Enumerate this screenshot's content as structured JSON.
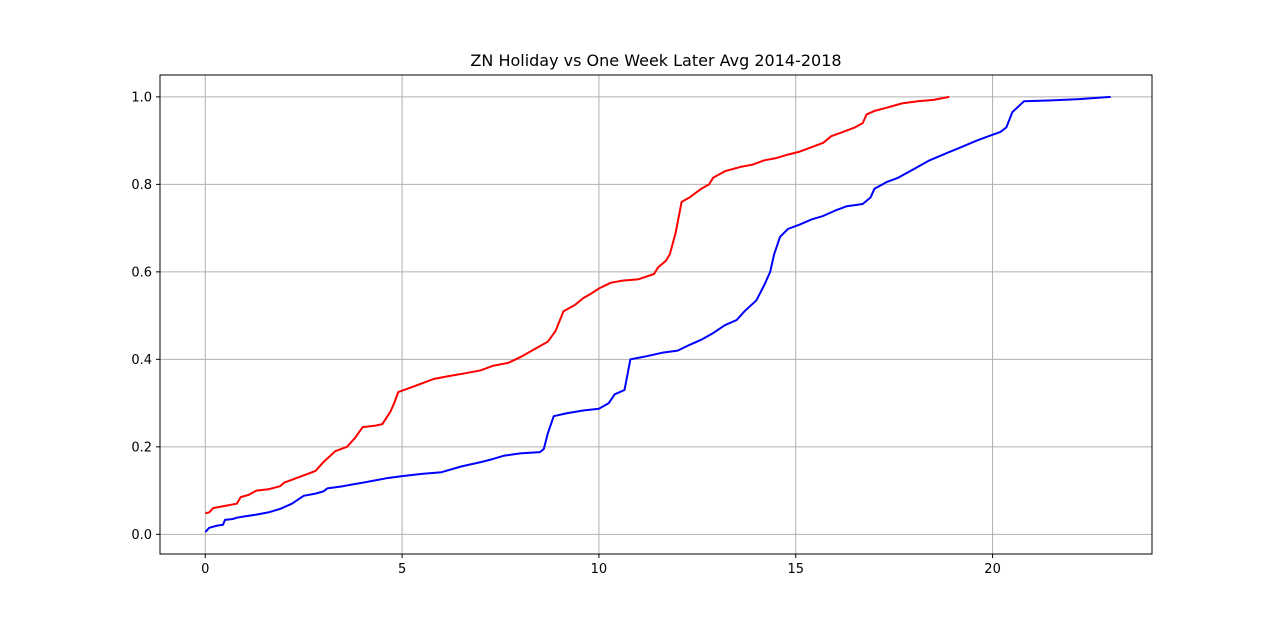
{
  "chart_data": {
    "type": "line",
    "title": "ZN Holiday vs One Week Later Avg 2014-2018",
    "xlabel": "",
    "ylabel": "",
    "xlim": [
      -1.15,
      24.05
    ],
    "ylim": [
      -0.045,
      1.05
    ],
    "xticks": [
      0,
      5,
      10,
      15,
      20
    ],
    "yticks": [
      0.0,
      0.2,
      0.4,
      0.6,
      0.8,
      1.0
    ],
    "xtick_labels": [
      "0",
      "5",
      "10",
      "15",
      "20"
    ],
    "ytick_labels": [
      "0.0",
      "0.2",
      "0.4",
      "0.6",
      "0.8",
      "1.0"
    ],
    "grid": true,
    "legend": "none",
    "series": [
      {
        "color": "#ff0000",
        "points": [
          [
            0.0,
            0.048
          ],
          [
            0.1,
            0.05
          ],
          [
            0.2,
            0.06
          ],
          [
            0.5,
            0.065
          ],
          [
            0.8,
            0.07
          ],
          [
            0.9,
            0.085
          ],
          [
            1.1,
            0.09
          ],
          [
            1.3,
            0.1
          ],
          [
            1.6,
            0.103
          ],
          [
            1.9,
            0.11
          ],
          [
            2.0,
            0.118
          ],
          [
            2.3,
            0.128
          ],
          [
            2.6,
            0.138
          ],
          [
            2.8,
            0.145
          ],
          [
            3.0,
            0.165
          ],
          [
            3.3,
            0.19
          ],
          [
            3.6,
            0.2
          ],
          [
            3.8,
            0.22
          ],
          [
            4.0,
            0.245
          ],
          [
            4.3,
            0.248
          ],
          [
            4.5,
            0.252
          ],
          [
            4.7,
            0.28
          ],
          [
            4.8,
            0.3
          ],
          [
            4.9,
            0.325
          ],
          [
            5.2,
            0.335
          ],
          [
            5.5,
            0.345
          ],
          [
            5.8,
            0.355
          ],
          [
            6.2,
            0.362
          ],
          [
            6.6,
            0.368
          ],
          [
            7.0,
            0.375
          ],
          [
            7.3,
            0.385
          ],
          [
            7.7,
            0.392
          ],
          [
            8.0,
            0.405
          ],
          [
            8.4,
            0.425
          ],
          [
            8.7,
            0.44
          ],
          [
            8.9,
            0.465
          ],
          [
            9.1,
            0.51
          ],
          [
            9.4,
            0.525
          ],
          [
            9.6,
            0.54
          ],
          [
            9.8,
            0.55
          ],
          [
            10.0,
            0.562
          ],
          [
            10.3,
            0.575
          ],
          [
            10.6,
            0.58
          ],
          [
            11.0,
            0.583
          ],
          [
            11.4,
            0.595
          ],
          [
            11.5,
            0.61
          ],
          [
            11.7,
            0.625
          ],
          [
            11.8,
            0.64
          ],
          [
            11.95,
            0.69
          ],
          [
            12.1,
            0.76
          ],
          [
            12.3,
            0.77
          ],
          [
            12.6,
            0.79
          ],
          [
            12.8,
            0.8
          ],
          [
            12.9,
            0.815
          ],
          [
            13.2,
            0.83
          ],
          [
            13.6,
            0.84
          ],
          [
            13.9,
            0.845
          ],
          [
            14.2,
            0.855
          ],
          [
            14.5,
            0.86
          ],
          [
            14.8,
            0.868
          ],
          [
            15.1,
            0.875
          ],
          [
            15.4,
            0.885
          ],
          [
            15.7,
            0.895
          ],
          [
            15.9,
            0.91
          ],
          [
            16.2,
            0.92
          ],
          [
            16.5,
            0.93
          ],
          [
            16.7,
            0.94
          ],
          [
            16.8,
            0.96
          ],
          [
            17.0,
            0.968
          ],
          [
            17.3,
            0.975
          ],
          [
            17.7,
            0.985
          ],
          [
            18.1,
            0.99
          ],
          [
            18.5,
            0.993
          ],
          [
            18.9,
            1.0
          ]
        ]
      },
      {
        "color": "#0000ff",
        "points": [
          [
            0.0,
            0.005
          ],
          [
            0.1,
            0.015
          ],
          [
            0.3,
            0.02
          ],
          [
            0.45,
            0.022
          ],
          [
            0.5,
            0.033
          ],
          [
            0.7,
            0.035
          ],
          [
            0.8,
            0.038
          ],
          [
            1.0,
            0.041
          ],
          [
            1.3,
            0.045
          ],
          [
            1.6,
            0.05
          ],
          [
            1.9,
            0.058
          ],
          [
            2.2,
            0.07
          ],
          [
            2.5,
            0.088
          ],
          [
            2.8,
            0.093
          ],
          [
            3.0,
            0.098
          ],
          [
            3.1,
            0.105
          ],
          [
            3.5,
            0.11
          ],
          [
            3.8,
            0.115
          ],
          [
            4.0,
            0.118
          ],
          [
            4.3,
            0.123
          ],
          [
            4.6,
            0.128
          ],
          [
            5.0,
            0.133
          ],
          [
            5.5,
            0.138
          ],
          [
            6.0,
            0.142
          ],
          [
            6.5,
            0.155
          ],
          [
            7.0,
            0.165
          ],
          [
            7.3,
            0.172
          ],
          [
            7.6,
            0.18
          ],
          [
            8.0,
            0.185
          ],
          [
            8.5,
            0.188
          ],
          [
            8.6,
            0.195
          ],
          [
            8.7,
            0.23
          ],
          [
            8.85,
            0.27
          ],
          [
            9.2,
            0.277
          ],
          [
            9.6,
            0.283
          ],
          [
            10.0,
            0.287
          ],
          [
            10.25,
            0.3
          ],
          [
            10.4,
            0.32
          ],
          [
            10.65,
            0.33
          ],
          [
            10.8,
            0.4
          ],
          [
            11.2,
            0.407
          ],
          [
            11.6,
            0.415
          ],
          [
            12.0,
            0.42
          ],
          [
            12.3,
            0.433
          ],
          [
            12.6,
            0.445
          ],
          [
            12.9,
            0.46
          ],
          [
            13.2,
            0.478
          ],
          [
            13.5,
            0.49
          ],
          [
            13.7,
            0.51
          ],
          [
            14.0,
            0.535
          ],
          [
            14.2,
            0.57
          ],
          [
            14.35,
            0.6
          ],
          [
            14.45,
            0.64
          ],
          [
            14.6,
            0.68
          ],
          [
            14.8,
            0.698
          ],
          [
            15.1,
            0.708
          ],
          [
            15.4,
            0.72
          ],
          [
            15.7,
            0.728
          ],
          [
            16.0,
            0.74
          ],
          [
            16.3,
            0.75
          ],
          [
            16.7,
            0.755
          ],
          [
            16.9,
            0.77
          ],
          [
            17.0,
            0.79
          ],
          [
            17.3,
            0.805
          ],
          [
            17.6,
            0.815
          ],
          [
            18.0,
            0.835
          ],
          [
            18.4,
            0.855
          ],
          [
            18.8,
            0.87
          ],
          [
            19.2,
            0.885
          ],
          [
            19.6,
            0.9
          ],
          [
            19.9,
            0.91
          ],
          [
            20.2,
            0.92
          ],
          [
            20.35,
            0.93
          ],
          [
            20.5,
            0.965
          ],
          [
            20.8,
            0.99
          ],
          [
            21.5,
            0.992
          ],
          [
            22.2,
            0.995
          ],
          [
            23.0,
            1.0
          ]
        ]
      }
    ]
  }
}
